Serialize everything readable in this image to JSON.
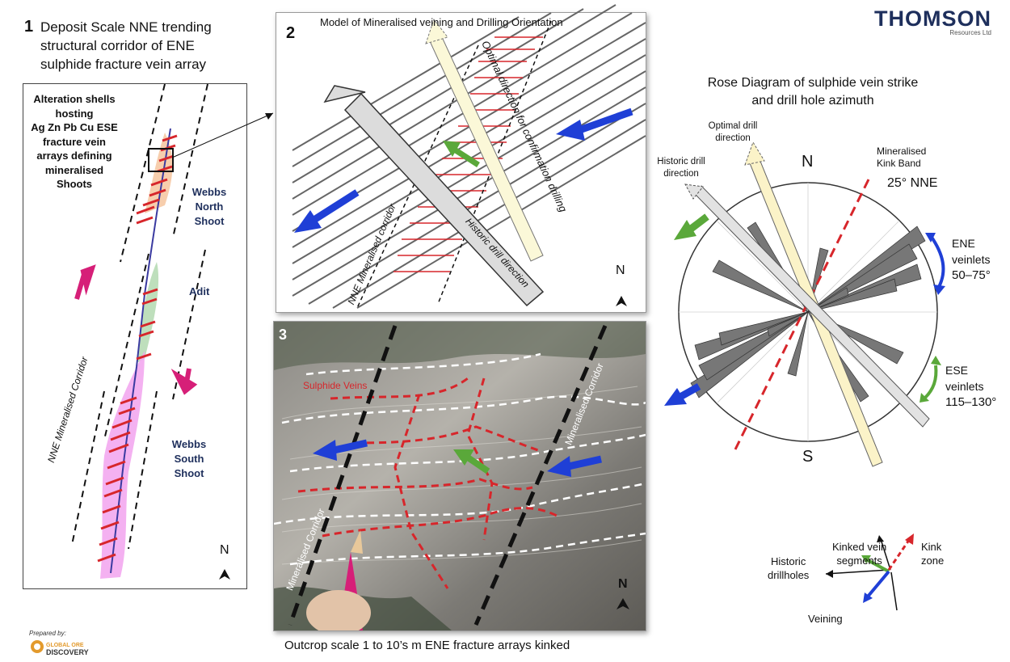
{
  "logo": {
    "name": "THOMSON",
    "sub": "Resources Ltd"
  },
  "panel1": {
    "number": "1",
    "title_lines": [
      "Deposit Scale NNE trending",
      "structural corridor of ENE",
      "sulphide fracture vein array"
    ],
    "alteration_lines": [
      "Alteration shells",
      "hosting",
      "Ag Zn Pb Cu ESE",
      "fracture vein",
      "arrays defining",
      "mineralised",
      "Shoots"
    ],
    "north_shoot_lines": [
      "Webbs",
      "North",
      "Shoot"
    ],
    "adit": "Adit",
    "south_shoot_lines": [
      "Webbs",
      "South",
      "Shoot"
    ],
    "corridor_label": "NNE Mineralised Corridor",
    "north": "N"
  },
  "panel2": {
    "number": "2",
    "title": "Model of Mineralised veining and Drilling Orientation",
    "optimal_label": "Optimal direction for confirmation drilling",
    "historic_label": "Historic drill direction",
    "corridor_label": "NNE Mineralised corridor",
    "north": "N"
  },
  "panel3": {
    "number": "3",
    "sulphide_label": "Sulphide Veins",
    "corridor_left": "Mineralised Corridor",
    "corridor_right": "Mineralised Corridor",
    "north": "N",
    "caption": "Outcrop scale 1 to 10’s m ENE fracture arrays kinked"
  },
  "rose": {
    "title_lines": [
      "Rose Diagram of sulphide vein strike",
      "and drill hole azimuth"
    ],
    "optimal_lines": [
      "Optimal drill",
      "direction"
    ],
    "historic_lines": [
      "Historic drill",
      "direction"
    ],
    "kink_lines": [
      "Mineralised",
      "Kink Band"
    ],
    "kink_angle": "25° NNE",
    "north": "N",
    "south": "S",
    "ene_lines": [
      "ENE",
      "veinlets",
      "50–75°"
    ],
    "ese_lines": [
      "ESE",
      "veinlets",
      "115–130°"
    ]
  },
  "legend": {
    "kinked_lines": [
      "Kinked vein",
      "segments"
    ],
    "kink_zone_lines": [
      "Kink",
      "zone"
    ],
    "historic_lines": [
      "Historic",
      "drillholes"
    ],
    "veining": "Veining"
  },
  "footer": {
    "prepared_by": "Prepared by:",
    "company_lines": [
      "GLOBAL ORE",
      "DISCOVERY"
    ]
  },
  "colors": {
    "red": "#d7262b",
    "blue": "#1f3fd6",
    "green": "#5aa83a",
    "magenta": "#d61f78",
    "navy": "#1e2f5c",
    "teal": "#2a8fa0"
  }
}
